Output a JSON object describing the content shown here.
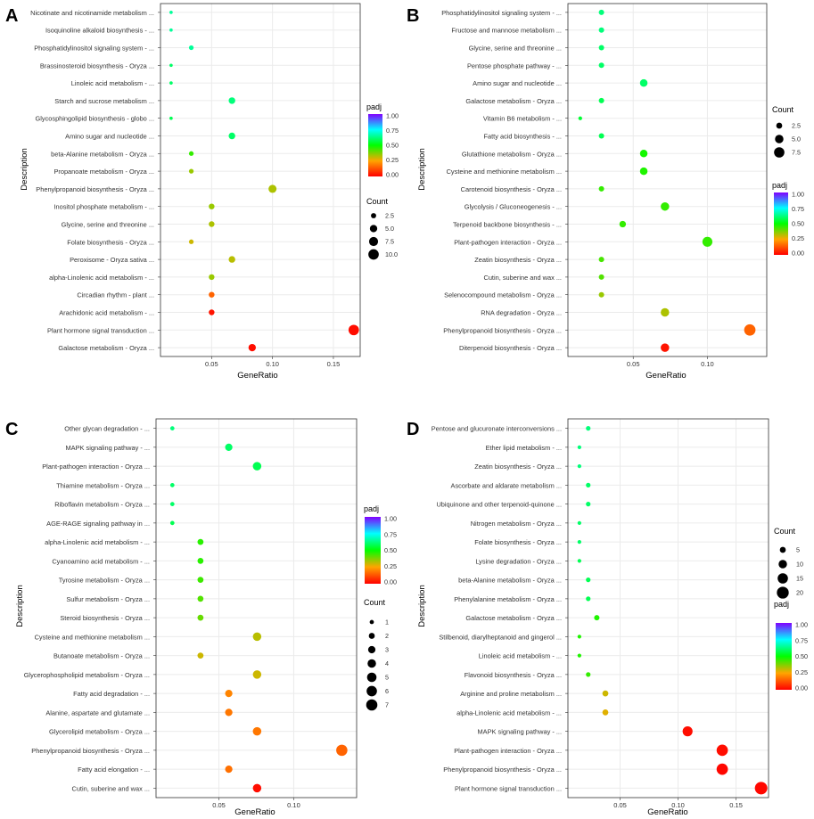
{
  "colorbar": {
    "stops": [
      "#ff0000",
      "#ffa500",
      "#00ff00",
      "#00ffff",
      "#8000ff"
    ]
  },
  "chart_data": [
    {
      "panel": "A",
      "type": "scatter",
      "xlabel": "GeneRatio",
      "ylabel": "Description",
      "xlim": [
        0.008,
        0.172
      ],
      "xticks": [
        0.05,
        0.1,
        0.15
      ],
      "xtick_labels": [
        "0.05",
        "0.10",
        "0.15"
      ],
      "count_range": [
        0,
        10.5
      ],
      "color_legend": {
        "title": "padj",
        "ticks": [
          "1.00",
          "0.75",
          "0.50",
          "0.25",
          "0.00"
        ]
      },
      "size_legend": {
        "title": "Count",
        "values": [
          2.5,
          5.0,
          7.5,
          10.0
        ],
        "labels": [
          "2.5",
          "5.0",
          "7.5",
          "10.0"
        ]
      },
      "points": [
        {
          "label": "Nicotinate and nicotinamide metabolism ...",
          "x": 0.0167,
          "count": 1,
          "padj": 0.65
        },
        {
          "label": "Isoquinoline alkaloid biosynthesis - ...",
          "x": 0.0167,
          "count": 1,
          "padj": 0.65
        },
        {
          "label": "Phosphatidylinositol signaling system - ...",
          "x": 0.0333,
          "count": 2,
          "padj": 0.65
        },
        {
          "label": "Brassinosteroid biosynthesis - Oryza ...",
          "x": 0.0167,
          "count": 1,
          "padj": 0.6
        },
        {
          "label": "Linoleic acid metabolism - ...",
          "x": 0.0167,
          "count": 1,
          "padj": 0.6
        },
        {
          "label": "Starch and sucrose metabolism ...",
          "x": 0.0667,
          "count": 4,
          "padj": 0.62
        },
        {
          "label": "Glycosphingolipid biosynthesis - globo ...",
          "x": 0.0167,
          "count": 1,
          "padj": 0.58
        },
        {
          "label": "Amino sugar and nucleotide ...",
          "x": 0.0667,
          "count": 4,
          "padj": 0.6
        },
        {
          "label": "beta-Alanine metabolism - Oryza ...",
          "x": 0.0333,
          "count": 2,
          "padj": 0.45
        },
        {
          "label": "Propanoate metabolism - Oryza ...",
          "x": 0.0333,
          "count": 2,
          "padj": 0.35
        },
        {
          "label": "Phenylpropanoid biosynthesis - Oryza ...",
          "x": 0.1,
          "count": 6,
          "padj": 0.33
        },
        {
          "label": "Inositol phosphate metabolism - ...",
          "x": 0.05,
          "count": 3,
          "padj": 0.35
        },
        {
          "label": "Glycine, serine and threonine ...",
          "x": 0.05,
          "count": 3,
          "padj": 0.33
        },
        {
          "label": "Folate biosynthesis - Oryza ...",
          "x": 0.0333,
          "count": 2,
          "padj": 0.3
        },
        {
          "label": "Peroxisome - Oryza sativa ...",
          "x": 0.0667,
          "count": 4,
          "padj": 0.32
        },
        {
          "label": "alpha-Linolenic acid metabolism - ...",
          "x": 0.05,
          "count": 3,
          "padj": 0.35
        },
        {
          "label": "Circadian rhythm - plant ...",
          "x": 0.05,
          "count": 3,
          "padj": 0.15
        },
        {
          "label": "Arachidonic acid metabolism - ...",
          "x": 0.05,
          "count": 3,
          "padj": 0.03
        },
        {
          "label": "Plant hormone signal transduction ...",
          "x": 0.1667,
          "count": 10,
          "padj": 0.02
        },
        {
          "label": "Galactose metabolism - Oryza ...",
          "x": 0.0833,
          "count": 5,
          "padj": 0.02
        }
      ]
    },
    {
      "panel": "B",
      "type": "scatter",
      "xlabel": "GeneRatio",
      "ylabel": "Description",
      "xlim": [
        0.006,
        0.14
      ],
      "xticks": [
        0.05,
        0.1
      ],
      "xtick_labels": [
        "0.05",
        "0.10"
      ],
      "count_range": [
        0,
        8
      ],
      "color_legend": {
        "title": "padj",
        "ticks": [
          "1.00",
          "0.75",
          "0.50",
          "0.25",
          "0.00"
        ]
      },
      "size_legend": {
        "title": "Count",
        "values": [
          2.5,
          5.0,
          7.5
        ],
        "labels": [
          "2.5",
          "5.0",
          "7.5"
        ]
      },
      "points": [
        {
          "label": "Phosphatidylinositol signaling system - ...",
          "x": 0.0286,
          "count": 2,
          "padj": 0.62
        },
        {
          "label": "Fructose and mannose metabolism ...",
          "x": 0.0286,
          "count": 2,
          "padj": 0.62
        },
        {
          "label": "Glycine, serine and threonine ...",
          "x": 0.0286,
          "count": 2,
          "padj": 0.6
        },
        {
          "label": "Pentose phosphate pathway - ...",
          "x": 0.0286,
          "count": 2,
          "padj": 0.6
        },
        {
          "label": "Amino sugar and nucleotide ...",
          "x": 0.0571,
          "count": 4,
          "padj": 0.6
        },
        {
          "label": "Galactose metabolism - Oryza ...",
          "x": 0.0286,
          "count": 2,
          "padj": 0.58
        },
        {
          "label": "Vitamin B6 metabolism - ...",
          "x": 0.0143,
          "count": 1,
          "padj": 0.55
        },
        {
          "label": "Fatty acid biosynthesis - ...",
          "x": 0.0286,
          "count": 2,
          "padj": 0.58
        },
        {
          "label": "Glutathione metabolism - Oryza ...",
          "x": 0.0571,
          "count": 4,
          "padj": 0.48
        },
        {
          "label": "Cysteine and methionine metabolism ...",
          "x": 0.0571,
          "count": 4,
          "padj": 0.47
        },
        {
          "label": "Carotenoid biosynthesis - Oryza ...",
          "x": 0.0286,
          "count": 2,
          "padj": 0.45
        },
        {
          "label": "Glycolysis / Gluconeogenesis - ...",
          "x": 0.0714,
          "count": 5,
          "padj": 0.45
        },
        {
          "label": "Terpenoid backbone biosynthesis - ...",
          "x": 0.0429,
          "count": 3,
          "padj": 0.45
        },
        {
          "label": "Plant-pathogen interaction - Oryza ...",
          "x": 0.1,
          "count": 7,
          "padj": 0.45
        },
        {
          "label": "Zeatin biosynthesis - Oryza ...",
          "x": 0.0286,
          "count": 2,
          "padj": 0.43
        },
        {
          "label": "Cutin, suberine and wax ...",
          "x": 0.0286,
          "count": 2,
          "padj": 0.42
        },
        {
          "label": "Selenocompound metabolism - Oryza ...",
          "x": 0.0286,
          "count": 2,
          "padj": 0.35
        },
        {
          "label": "RNA degradation - Oryza ...",
          "x": 0.0714,
          "count": 5,
          "padj": 0.33
        },
        {
          "label": "Phenylpropanoid biosynthesis - Oryza ...",
          "x": 0.1286,
          "count": 9,
          "padj": 0.15
        },
        {
          "label": "Diterpenoid biosynthesis - Oryza ...",
          "x": 0.0714,
          "count": 5,
          "padj": 0.03
        }
      ]
    },
    {
      "panel": "C",
      "type": "scatter",
      "xlabel": "GeneRatio",
      "ylabel": "Description",
      "xlim": [
        0.008,
        0.142
      ],
      "xticks": [
        0.05,
        0.1
      ],
      "xtick_labels": [
        "0.05",
        "0.10"
      ],
      "count_range": [
        0,
        7.5
      ],
      "color_legend": {
        "title": "padj",
        "ticks": [
          "1.00",
          "0.75",
          "0.50",
          "0.25",
          "0.00"
        ]
      },
      "size_legend": {
        "title": "Count",
        "values": [
          1,
          2,
          3,
          4,
          5,
          6,
          7
        ],
        "labels": [
          "1",
          "2",
          "3",
          "4",
          "5",
          "6",
          "7"
        ]
      },
      "points": [
        {
          "label": "Other glycan degradation - ...",
          "x": 0.0189,
          "count": 1,
          "padj": 0.62
        },
        {
          "label": "MAPK signaling pathway - ...",
          "x": 0.0566,
          "count": 3,
          "padj": 0.6
        },
        {
          "label": "Plant-pathogen interaction - Oryza ...",
          "x": 0.0755,
          "count": 4,
          "padj": 0.58
        },
        {
          "label": "Thiamine metabolism - Oryza ...",
          "x": 0.0189,
          "count": 1,
          "padj": 0.6
        },
        {
          "label": "Riboflavin metabolism - Oryza ...",
          "x": 0.0189,
          "count": 1,
          "padj": 0.6
        },
        {
          "label": "AGE-RAGE signaling pathway in ...",
          "x": 0.0189,
          "count": 1,
          "padj": 0.58
        },
        {
          "label": "alpha-Linolenic acid metabolism - ...",
          "x": 0.0377,
          "count": 2,
          "padj": 0.46
        },
        {
          "label": "Cyanoamino acid metabolism - ...",
          "x": 0.0377,
          "count": 2,
          "padj": 0.46
        },
        {
          "label": "Tyrosine metabolism - Oryza ...",
          "x": 0.0377,
          "count": 2,
          "padj": 0.44
        },
        {
          "label": "Sulfur metabolism - Oryza ...",
          "x": 0.0377,
          "count": 2,
          "padj": 0.42
        },
        {
          "label": "Steroid biosynthesis - Oryza ...",
          "x": 0.0377,
          "count": 2,
          "padj": 0.4
        },
        {
          "label": "Cysteine and methionine metabolism ...",
          "x": 0.0755,
          "count": 4,
          "padj": 0.32
        },
        {
          "label": "Butanoate metabolism - Oryza ...",
          "x": 0.0377,
          "count": 2,
          "padj": 0.3
        },
        {
          "label": "Glycerophospholipid metabolism - Oryza ...",
          "x": 0.0755,
          "count": 4,
          "padj": 0.3
        },
        {
          "label": "Fatty acid degradation - ...",
          "x": 0.0566,
          "count": 3,
          "padj": 0.2
        },
        {
          "label": "Alanine, aspartate and glutamate ...",
          "x": 0.0566,
          "count": 3,
          "padj": 0.18
        },
        {
          "label": "Glycerolipid metabolism - Oryza ...",
          "x": 0.0755,
          "count": 4,
          "padj": 0.18
        },
        {
          "label": "Phenylpropanoid biosynthesis - Oryza ...",
          "x": 0.1321,
          "count": 7,
          "padj": 0.15
        },
        {
          "label": "Fatty acid elongation - ...",
          "x": 0.0566,
          "count": 3,
          "padj": 0.17
        },
        {
          "label": "Cutin, suberine and wax ...",
          "x": 0.0755,
          "count": 4,
          "padj": 0.02
        }
      ]
    },
    {
      "panel": "D",
      "type": "scatter",
      "xlabel": "GeneRatio",
      "ylabel": "Description",
      "xlim": [
        0.005,
        0.178
      ],
      "xticks": [
        0.05,
        0.1,
        0.15
      ],
      "xtick_labels": [
        "0.05",
        "0.10",
        "0.15"
      ],
      "count_range": [
        0,
        22
      ],
      "color_legend": {
        "title": "padj",
        "ticks": [
          "1.00",
          "0.75",
          "0.50",
          "0.25",
          "0.00"
        ]
      },
      "size_legend": {
        "title": "Count",
        "values": [
          5,
          10,
          15,
          20
        ],
        "labels": [
          "5",
          "10",
          "15",
          "20"
        ]
      },
      "points": [
        {
          "label": "Pentose and glucuronate interconversions ...",
          "x": 0.0225,
          "count": 3,
          "padj": 0.62
        },
        {
          "label": "Ether lipid metabolism - ...",
          "x": 0.0149,
          "count": 2,
          "padj": 0.62
        },
        {
          "label": "Zeatin biosynthesis - Oryza ...",
          "x": 0.0149,
          "count": 2,
          "padj": 0.62
        },
        {
          "label": "Ascorbate and aldarate metabolism ...",
          "x": 0.0225,
          "count": 3,
          "padj": 0.6
        },
        {
          "label": "Ubiquinone and other terpenoid-quinone ...",
          "x": 0.0225,
          "count": 3,
          "padj": 0.6
        },
        {
          "label": "Nitrogen metabolism - Oryza ...",
          "x": 0.0149,
          "count": 2,
          "padj": 0.6
        },
        {
          "label": "Folate biosynthesis - Oryza ...",
          "x": 0.0149,
          "count": 2,
          "padj": 0.6
        },
        {
          "label": "Lysine degradation - Oryza ...",
          "x": 0.0149,
          "count": 2,
          "padj": 0.58
        },
        {
          "label": "beta-Alanine metabolism - Oryza ...",
          "x": 0.0225,
          "count": 3,
          "padj": 0.58
        },
        {
          "label": "Phenylalanine metabolism - Oryza ...",
          "x": 0.0225,
          "count": 3,
          "padj": 0.58
        },
        {
          "label": "Galactose metabolism - Oryza ...",
          "x": 0.0299,
          "count": 4,
          "padj": 0.47
        },
        {
          "label": "Stilbenoid, diarylheptanoid and gingerol ...",
          "x": 0.0149,
          "count": 2,
          "padj": 0.47
        },
        {
          "label": "Linoleic acid metabolism - ...",
          "x": 0.0149,
          "count": 2,
          "padj": 0.47
        },
        {
          "label": "Flavonoid biosynthesis - Oryza ...",
          "x": 0.0225,
          "count": 3,
          "padj": 0.45
        },
        {
          "label": "Arginine and proline metabolism ...",
          "x": 0.0373,
          "count": 5,
          "padj": 0.3
        },
        {
          "label": "alpha-Linolenic acid metabolism - ...",
          "x": 0.0373,
          "count": 5,
          "padj": 0.28
        },
        {
          "label": "MAPK signaling pathway - ...",
          "x": 0.1082,
          "count": 14,
          "padj": 0.02
        },
        {
          "label": "Plant-pathogen interaction - Oryza ...",
          "x": 0.1381,
          "count": 18,
          "padj": 0.02
        },
        {
          "label": "Phenylpropanoid biosynthesis - Oryza ...",
          "x": 0.1381,
          "count": 18,
          "padj": 0.01
        },
        {
          "label": "Plant hormone signal transduction ...",
          "x": 0.1716,
          "count": 22,
          "padj": 0.01
        }
      ]
    }
  ]
}
